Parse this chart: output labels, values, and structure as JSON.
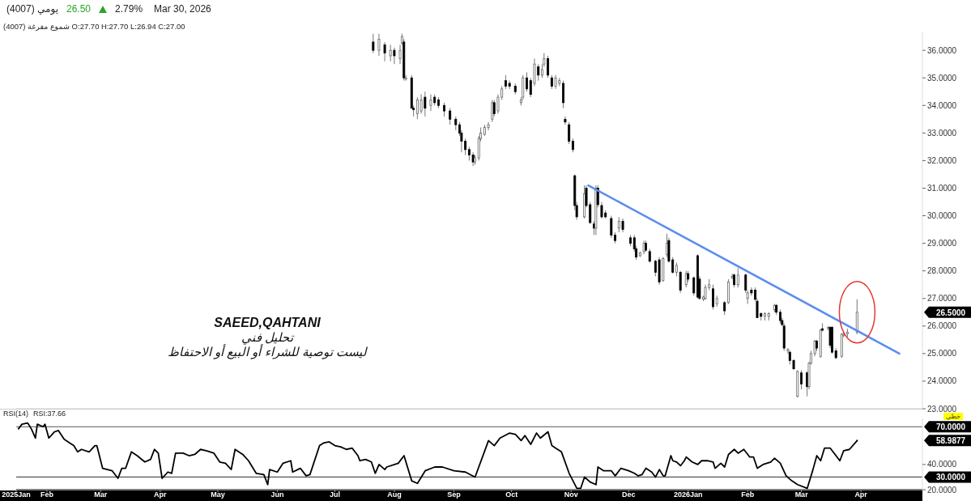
{
  "chart_data": [
    {
      "type": "candlestick",
      "title": "(4007) يومي",
      "subtitle": "(4007) شموع مفرغة O:27.70 H:27.70 L:26.94 C:27.00",
      "tick_labels": "y",
      "xlim": [
        "2025-01-16",
        "2026-05-03"
      ],
      "ylim": [
        23,
        36.65
      ],
      "yticks": [
        {
          "value": 23,
          "label": "23.0000"
        },
        {
          "value": 24,
          "label": "24.0000"
        },
        {
          "value": 25,
          "label": "25.0000"
        },
        {
          "value": 26,
          "label": "26.0000"
        },
        {
          "value": 27,
          "label": "27.0000"
        },
        {
          "value": 28,
          "label": "28.0000"
        },
        {
          "value": 29,
          "label": "29.0000"
        },
        {
          "value": 30,
          "label": "30.0000"
        },
        {
          "value": 31,
          "label": "31.0000"
        },
        {
          "value": 32,
          "label": "32.0000"
        },
        {
          "value": 33,
          "label": "33.0000"
        },
        {
          "value": 34,
          "label": "34.0000"
        },
        {
          "value": 35,
          "label": "35.0000"
        },
        {
          "value": 36,
          "label": "36.0000"
        }
      ],
      "x": [
        "2025-07-21",
        "2025-07-24",
        "2025-07-27",
        "2025-07-30",
        "2025-08-01",
        "2025-08-04",
        "2025-08-05",
        "2025-08-06",
        "2025-08-07",
        "2025-08-10",
        "2025-08-11",
        "2025-08-13",
        "2025-08-15",
        "2025-08-17",
        "2025-08-20",
        "2025-08-22",
        "2025-08-24",
        "2025-08-27",
        "2025-08-30",
        "2025-09-02",
        "2025-09-04",
        "2025-09-05",
        "2025-09-07",
        "2025-09-09",
        "2025-09-11",
        "2025-09-12",
        "2025-09-14",
        "2025-09-15",
        "2025-09-17",
        "2025-09-19",
        "2025-09-21",
        "2025-09-22",
        "2025-09-24",
        "2025-09-26",
        "2025-09-28",
        "2025-09-30",
        "2025-10-03",
        "2025-10-06",
        "2025-10-07",
        "2025-10-09",
        "2025-10-11",
        "2025-10-13",
        "2025-10-15",
        "2025-10-17",
        "2025-10-18",
        "2025-10-20",
        "2025-10-22",
        "2025-10-24",
        "2025-10-26",
        "2025-10-28",
        "2025-10-29",
        "2025-10-31",
        "2025-11-02",
        "2025-11-03",
        "2025-11-04",
        "2025-11-08",
        "2025-11-09",
        "2025-11-11",
        "2025-11-13",
        "2025-11-14",
        "2025-11-15",
        "2025-11-17",
        "2025-11-19",
        "2025-11-22",
        "2025-11-24",
        "2025-11-26",
        "2025-11-28",
        "2025-12-02",
        "2025-12-04",
        "2025-12-05",
        "2025-12-07",
        "2025-12-09",
        "2025-12-10",
        "2025-12-12",
        "2025-12-15",
        "2025-12-17",
        "2025-12-19",
        "2025-12-21",
        "2025-12-22",
        "2025-12-24",
        "2025-12-26",
        "2025-12-28",
        "2025-12-31",
        "2026-01-01",
        "2026-01-04",
        "2026-01-06",
        "2026-01-07",
        "2026-01-09",
        "2026-01-10",
        "2026-01-12",
        "2026-01-14",
        "2026-01-16",
        "2026-01-20",
        "2026-01-22",
        "2026-01-24",
        "2026-01-25",
        "2026-01-27",
        "2026-01-31",
        "2026-02-01",
        "2026-02-03",
        "2026-02-05",
        "2026-02-06",
        "2026-02-08",
        "2026-02-10",
        "2026-02-12",
        "2026-02-15",
        "2026-02-16",
        "2026-02-18",
        "2026-02-19",
        "2026-02-20",
        "2026-02-22",
        "2026-02-23",
        "2026-02-25",
        "2026-02-27",
        "2026-03-01",
        "2026-03-04",
        "2026-03-05",
        "2026-03-06",
        "2026-03-08",
        "2026-03-09",
        "2026-03-11",
        "2026-03-12",
        "2026-03-15",
        "2026-03-16",
        "2026-03-17",
        "2026-03-19",
        "2026-03-22",
        "2026-03-23",
        "2026-03-25",
        "2026-03-30"
      ],
      "ohlc": [
        [
          36.3,
          36.6,
          35.9,
          36.0
        ],
        [
          36.0,
          36.6,
          35.8,
          36.4
        ],
        [
          36.2,
          36.3,
          35.6,
          35.9
        ],
        [
          35.8,
          36.2,
          35.6,
          36.0
        ],
        [
          36.0,
          36.1,
          35.5,
          35.8
        ],
        [
          35.7,
          36.2,
          35.5,
          36.0
        ],
        [
          36.26,
          36.6,
          36.2,
          36.5
        ],
        [
          36.3,
          36.4,
          34.9,
          35.0
        ],
        [
          34.95,
          35.1,
          34.9,
          35.0
        ],
        [
          35.0,
          35.1,
          33.9,
          33.9
        ],
        [
          33.9,
          34.0,
          33.6,
          33.85
        ],
        [
          33.7,
          34.3,
          33.5,
          34.2
        ],
        [
          33.8,
          34.4,
          33.7,
          34.2
        ],
        [
          34.3,
          34.5,
          33.6,
          33.9
        ],
        [
          34.0,
          34.4,
          33.8,
          34.2
        ],
        [
          34.3,
          34.4,
          34.0,
          34.1
        ],
        [
          34.2,
          34.3,
          33.9,
          34.0
        ],
        [
          34.0,
          34.1,
          33.6,
          33.8
        ],
        [
          33.8,
          33.9,
          33.3,
          33.5
        ],
        [
          33.5,
          33.6,
          33.1,
          33.3
        ],
        [
          33.3,
          33.4,
          32.9,
          33.0
        ],
        [
          33.0,
          33.1,
          32.3,
          32.7
        ],
        [
          32.7,
          32.8,
          32.2,
          32.4
        ],
        [
          32.4,
          32.5,
          32.0,
          32.2
        ],
        [
          32.2,
          32.3,
          31.8,
          31.95
        ],
        [
          31.95,
          32.2,
          31.85,
          32.1
        ],
        [
          32.1,
          32.9,
          32.0,
          32.8
        ],
        [
          32.8,
          33.2,
          32.7,
          33.0
        ],
        [
          32.95,
          33.3,
          32.9,
          33.2
        ],
        [
          33.2,
          33.4,
          33.1,
          33.3
        ],
        [
          33.5,
          34.2,
          33.4,
          34.1
        ],
        [
          34.1,
          34.2,
          33.6,
          33.7
        ],
        [
          33.8,
          34.4,
          33.7,
          34.3
        ],
        [
          34.3,
          34.7,
          34.2,
          34.6
        ],
        [
          34.9,
          35.1,
          34.6,
          34.7
        ],
        [
          34.8,
          34.9,
          34.6,
          34.7
        ],
        [
          34.7,
          34.8,
          34.4,
          34.5
        ],
        [
          34.1,
          34.3,
          34.0,
          34.2
        ],
        [
          34.3,
          35.1,
          34.2,
          35.0
        ],
        [
          35.0,
          35.2,
          34.5,
          34.6
        ],
        [
          34.9,
          35.0,
          34.3,
          34.4
        ],
        [
          34.8,
          35.7,
          34.7,
          35.5
        ],
        [
          35.4,
          35.5,
          34.9,
          35.1
        ],
        [
          35.1,
          35.5,
          35.0,
          35.3
        ],
        [
          35.5,
          35.9,
          35.4,
          35.7
        ],
        [
          35.7,
          35.8,
          35.0,
          35.1
        ],
        [
          35.0,
          35.1,
          34.6,
          34.7
        ],
        [
          34.7,
          35.1,
          34.6,
          35.0
        ],
        [
          34.8,
          35.0,
          34.7,
          34.9
        ],
        [
          34.8,
          34.9,
          33.9,
          34.1
        ],
        [
          33.5,
          33.6,
          33.3,
          33.4
        ],
        [
          33.3,
          33.4,
          32.6,
          32.7
        ],
        [
          32.7,
          32.8,
          32.3,
          32.4
        ],
        [
          31.45,
          31.5,
          30.2,
          30.37
        ],
        [
          30.37,
          30.5,
          29.85,
          29.96
        ],
        [
          29.96,
          31.1,
          29.9,
          30.8
        ],
        [
          31.0,
          31.1,
          30.3,
          30.37
        ],
        [
          30.4,
          30.5,
          29.7,
          29.75
        ],
        [
          29.7,
          29.8,
          29.3,
          29.55
        ],
        [
          29.55,
          31.1,
          29.3,
          31.0
        ],
        [
          31.0,
          31.1,
          30.3,
          30.4
        ],
        [
          30.37,
          30.5,
          29.9,
          29.96
        ],
        [
          30.1,
          30.2,
          29.9,
          29.96
        ],
        [
          29.9,
          30.0,
          29.2,
          29.3
        ],
        [
          29.3,
          29.4,
          29.0,
          29.1
        ],
        [
          29.55,
          29.95,
          29.4,
          29.8
        ],
        [
          29.8,
          29.9,
          29.4,
          29.5
        ],
        [
          29.2,
          29.3,
          28.9,
          29.0
        ],
        [
          29.2,
          29.3,
          28.7,
          28.8
        ],
        [
          28.8,
          28.9,
          28.4,
          28.5
        ],
        [
          28.55,
          28.7,
          28.5,
          28.65
        ],
        [
          28.7,
          29.1,
          28.6,
          29.0
        ],
        [
          29.0,
          29.1,
          28.7,
          28.75
        ],
        [
          28.7,
          28.8,
          28.3,
          28.35
        ],
        [
          28.35,
          28.4,
          27.8,
          27.95
        ],
        [
          28.4,
          28.5,
          27.5,
          27.6
        ],
        [
          27.65,
          28.5,
          27.6,
          28.45
        ],
        [
          28.6,
          29.35,
          28.5,
          29.0
        ],
        [
          29.1,
          29.2,
          28.3,
          28.35
        ],
        [
          28.4,
          28.5,
          27.9,
          27.95
        ],
        [
          27.95,
          28.3,
          27.8,
          28.2
        ],
        [
          27.95,
          28.0,
          27.2,
          27.3
        ],
        [
          27.5,
          28.0,
          27.4,
          27.9
        ],
        [
          27.9,
          28.0,
          27.6,
          27.7
        ],
        [
          27.75,
          27.8,
          27.1,
          27.2
        ],
        [
          28.55,
          28.6,
          27.0,
          27.05
        ],
        [
          27.7,
          27.8,
          26.95,
          27.0
        ],
        [
          26.97,
          27.1,
          26.9,
          27.05
        ],
        [
          27.0,
          27.5,
          26.95,
          27.4
        ],
        [
          27.4,
          27.7,
          27.3,
          27.5
        ],
        [
          27.35,
          27.5,
          26.6,
          26.7
        ],
        [
          26.8,
          27.1,
          26.7,
          27.0
        ],
        [
          26.85,
          26.9,
          26.4,
          26.55
        ],
        [
          26.85,
          27.7,
          26.8,
          27.6
        ],
        [
          27.75,
          27.9,
          27.7,
          27.8
        ],
        [
          27.85,
          27.9,
          27.4,
          27.5
        ],
        [
          27.5,
          28.1,
          27.4,
          27.85
        ],
        [
          27.85,
          27.9,
          27.2,
          27.3
        ],
        [
          27.0,
          27.3,
          26.8,
          27.2
        ],
        [
          27.3,
          27.4,
          27.1,
          27.2
        ],
        [
          27.3,
          27.4,
          26.9,
          26.97
        ],
        [
          26.9,
          27.0,
          26.3,
          26.3
        ],
        [
          26.45,
          26.5,
          26.2,
          26.35
        ],
        [
          26.35,
          26.5,
          26.2,
          26.45
        ],
        [
          26.35,
          26.5,
          26.2,
          26.45
        ],
        [
          26.6,
          26.8,
          26.5,
          26.75
        ],
        [
          26.75,
          26.8,
          26.4,
          26.5
        ],
        [
          26.5,
          26.6,
          26.1,
          26.2
        ],
        [
          26.2,
          26.3,
          26.0,
          26.05
        ],
        [
          26.0,
          26.1,
          25.1,
          25.2
        ],
        [
          25.1,
          25.2,
          25.0,
          25.15
        ],
        [
          25.05,
          25.1,
          24.6,
          24.75
        ],
        [
          24.75,
          24.8,
          24.4,
          24.45
        ],
        [
          23.45,
          24.4,
          23.41,
          24.35
        ],
        [
          24.3,
          24.4,
          23.7,
          23.9
        ],
        [
          24.3,
          24.35,
          23.45,
          23.8
        ],
        [
          23.8,
          24.7,
          23.7,
          24.65
        ],
        [
          24.65,
          25.1,
          24.6,
          25.0
        ],
        [
          25.0,
          25.5,
          24.9,
          25.45
        ],
        [
          25.45,
          25.5,
          25.1,
          25.2
        ],
        [
          24.9,
          25.9,
          24.85,
          25.85
        ],
        [
          25.9,
          26.1,
          25.8,
          25.85
        ],
        [
          25.9,
          26.0,
          25.85,
          25.95
        ],
        [
          25.95,
          26.0,
          25.2,
          25.3
        ],
        [
          25.95,
          26.0,
          25.0,
          25.05
        ],
        [
          25.1,
          25.2,
          24.8,
          24.85
        ],
        [
          24.9,
          25.75,
          24.85,
          25.7
        ],
        [
          25.65,
          25.8,
          25.6,
          25.7
        ],
        [
          25.72,
          25.9,
          25.6,
          25.78
        ],
        [
          25.78,
          26.97,
          25.7,
          26.5
        ]
      ],
      "series": [
        {
          "type": "line",
          "x": [
            "2025-11-10",
            "2026-04-21"
          ],
          "values": [
            31.1,
            25.0
          ],
          "color": "#5b8def"
        }
      ],
      "annotations": [
        "26.50",
        "2.79%",
        "Mar 30, 2026",
        "خطي",
        "SAEED,QAHTANI",
        "تحليل فني",
        "ليست توصية للشراء أو البيع أو الاحتفاظ",
        "26.5000"
      ]
    },
    {
      "type": "line",
      "title": "RSI(14)",
      "subtitle": "RSI:37.66",
      "color": "#000000",
      "xlim": [
        "2025-01-16",
        "2026-05-03"
      ],
      "xticks": [
        {
          "value": "2025-01-16",
          "label": "2025Jan"
        },
        {
          "value": "2025-02-01",
          "label": "Feb"
        },
        {
          "value": "2025-03-01",
          "label": "Mar"
        },
        {
          "value": "2025-04-01",
          "label": "Apr"
        },
        {
          "value": "2025-05-01",
          "label": "May"
        },
        {
          "value": "2025-06-01",
          "label": "Jun"
        },
        {
          "value": "2025-07-01",
          "label": "Jul"
        },
        {
          "value": "2025-08-01",
          "label": "Aug"
        },
        {
          "value": "2025-09-01",
          "label": "Sep"
        },
        {
          "value": "2025-10-01",
          "label": "Oct"
        },
        {
          "value": "2025-11-01",
          "label": "Nov"
        },
        {
          "value": "2025-12-01",
          "label": "Dec"
        },
        {
          "value": "2026-01-01",
          "label": "2026Jan"
        },
        {
          "value": "2026-02-01",
          "label": "Feb"
        },
        {
          "value": "2026-03-01",
          "label": "Mar"
        },
        {
          "value": "2026-04-01",
          "label": "Apr"
        }
      ],
      "ylim": [
        20,
        76.6
      ],
      "yticks": [
        {
          "value": 20,
          "label": "20.0000"
        },
        {
          "value": 40,
          "label": "40.0000"
        }
      ],
      "ref_lines": [
        {
          "axis": "y",
          "value": 70,
          "label": "70.0000",
          "color": "#555555"
        },
        {
          "axis": "y",
          "value": 30,
          "label": "30.0000",
          "color": "#555555"
        }
      ],
      "x": [
        "2025-01-17",
        "2025-01-19",
        "2025-01-22",
        "2025-01-24",
        "2025-01-26",
        "2025-01-27",
        "2025-01-30",
        "2025-01-31",
        "2025-02-02",
        "2025-02-05",
        "2025-02-07",
        "2025-02-10",
        "2025-02-13",
        "2025-02-15",
        "2025-02-17",
        "2025-02-19",
        "2025-02-23",
        "2025-02-26",
        "2025-02-27",
        "2025-03-02",
        "2025-03-07",
        "2025-03-10",
        "2025-03-12",
        "2025-03-14",
        "2025-03-17",
        "2025-03-20",
        "2025-03-24",
        "2025-03-27",
        "2025-03-29",
        "2025-03-31",
        "2025-04-02",
        "2025-04-05",
        "2025-04-07",
        "2025-04-09",
        "2025-04-13",
        "2025-04-16",
        "2025-04-19",
        "2025-04-22",
        "2025-04-25",
        "2025-04-29",
        "2025-05-02",
        "2025-05-05",
        "2025-05-08",
        "2025-05-10",
        "2025-05-14",
        "2025-05-17",
        "2025-05-21",
        "2025-05-25",
        "2025-05-27",
        "2025-05-28",
        "2025-06-01",
        "2025-06-04",
        "2025-06-08",
        "2025-06-09",
        "2025-06-13",
        "2025-06-16",
        "2025-06-18",
        "2025-06-23",
        "2025-06-25",
        "2025-06-28",
        "2025-07-01",
        "2025-07-04",
        "2025-07-07",
        "2025-07-10",
        "2025-07-13",
        "2025-07-14",
        "2025-07-17",
        "2025-07-20",
        "2025-07-22",
        "2025-07-24",
        "2025-07-27",
        "2025-07-28",
        "2025-08-03",
        "2025-08-06",
        "2025-08-10",
        "2025-08-13",
        "2025-08-17",
        "2025-08-22",
        "2025-08-26",
        "2025-09-01",
        "2025-09-07",
        "2025-09-12",
        "2025-09-19",
        "2025-09-22",
        "2025-09-25",
        "2025-09-30",
        "2025-10-03",
        "2025-10-06",
        "2025-10-08",
        "2025-10-11",
        "2025-10-14",
        "2025-10-16",
        "2025-10-20",
        "2025-10-22",
        "2025-10-24",
        "2025-10-27",
        "2025-10-31",
        "2025-11-01",
        "2025-11-04",
        "2025-11-06",
        "2025-11-08",
        "2025-11-11",
        "2025-11-14",
        "2025-11-15",
        "2025-11-18",
        "2025-11-22",
        "2025-11-24",
        "2025-11-27",
        "2025-12-01",
        "2025-12-04",
        "2025-12-06",
        "2025-12-08",
        "2025-12-10",
        "2025-12-13",
        "2025-12-15",
        "2025-12-17",
        "2025-12-19",
        "2025-12-20",
        "2025-12-23",
        "2025-12-24",
        "2025-12-26",
        "2025-12-28",
        "2025-12-30",
        "2025-12-31",
        "2026-01-03",
        "2026-01-06",
        "2026-01-08",
        "2026-01-11",
        "2026-01-14",
        "2026-01-15",
        "2026-01-18",
        "2026-01-20",
        "2026-01-22",
        "2026-01-25",
        "2026-01-27",
        "2026-01-30",
        "2026-02-02",
        "2026-02-04",
        "2026-02-06",
        "2026-02-09",
        "2026-02-13",
        "2026-02-15",
        "2026-02-18",
        "2026-02-21",
        "2026-02-24",
        "2026-02-27",
        "2026-03-04",
        "2026-03-07",
        "2026-03-09",
        "2026-03-11",
        "2026-03-13",
        "2026-03-16",
        "2026-03-19",
        "2026-03-21",
        "2026-03-23",
        "2026-03-26",
        "2026-03-30"
      ],
      "values": [
        68,
        72,
        73,
        68,
        61,
        72,
        70,
        72,
        61,
        66,
        67,
        60,
        57,
        55,
        50,
        52,
        50,
        55,
        55,
        37,
        35,
        29,
        37,
        37,
        50,
        47,
        42,
        44,
        52,
        49,
        29,
        34,
        33,
        49,
        49,
        47,
        48,
        52,
        51,
        49,
        42,
        41,
        36,
        52,
        48,
        43,
        33,
        32,
        24,
        36,
        34,
        41,
        43,
        34,
        37,
        31,
        32,
        55,
        57,
        58,
        55,
        54,
        52,
        53,
        47,
        43,
        44,
        42,
        33,
        40,
        36,
        38,
        41,
        47,
        27,
        25,
        35,
        38,
        38,
        35,
        34,
        30,
        59,
        55,
        61,
        65,
        64,
        59,
        63,
        56,
        65,
        61,
        66,
        55,
        53,
        50,
        33,
        30,
        21,
        21,
        30,
        26,
        24,
        38,
        35,
        35,
        31,
        37,
        35,
        33,
        31,
        32,
        37,
        34,
        30,
        36,
        31,
        31,
        47,
        43,
        42,
        39,
        43,
        46,
        42,
        40,
        43,
        43,
        42,
        37,
        41,
        38,
        48,
        52,
        49,
        52,
        46,
        46,
        37,
        40,
        42,
        45,
        41,
        31,
        27,
        24,
        21,
        36,
        47,
        43,
        53,
        53,
        47,
        43,
        51,
        52,
        59
      ],
      "annotations": [
        "58.9877"
      ]
    }
  ]
}
